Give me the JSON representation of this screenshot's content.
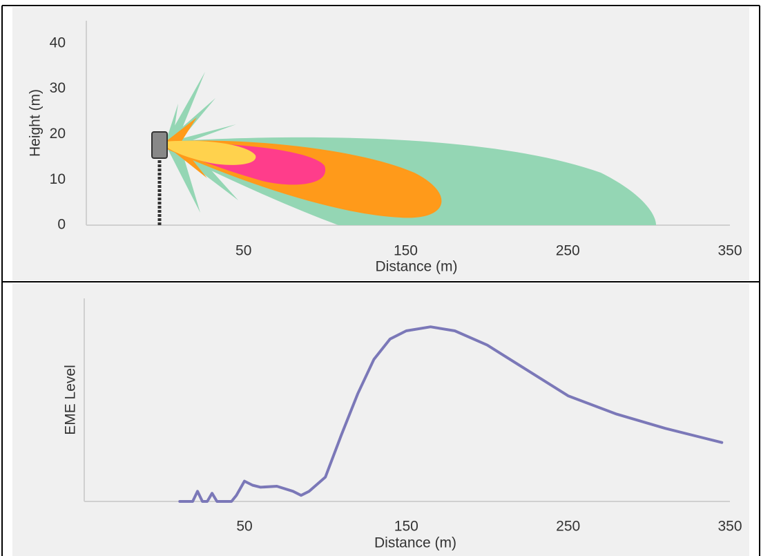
{
  "chart_data": [
    {
      "type": "area",
      "xlabel": "Distance (m)",
      "ylabel": "Height (m)",
      "xlim": [
        -47,
        350
      ],
      "ylim": [
        0,
        45
      ],
      "xticks": [
        50,
        150,
        250,
        350
      ],
      "yticks": [
        0,
        10,
        20,
        30,
        40
      ]
    },
    {
      "type": "line",
      "xlabel": "Distance (m)",
      "ylabel": "EME Level",
      "xlim": [
        -49,
        350
      ],
      "ylim": [
        0,
        100
      ],
      "xticks": [
        50,
        150,
        250,
        350
      ],
      "x": [
        10,
        18,
        21,
        24,
        27,
        30,
        33,
        42,
        45,
        50,
        55,
        60,
        70,
        80,
        85,
        90,
        100,
        110,
        120,
        130,
        140,
        150,
        165,
        180,
        200,
        220,
        250,
        280,
        310,
        345
      ],
      "series": [
        {
          "color": "#7b78b8",
          "values": [
            0,
            0,
            5,
            0,
            0,
            4,
            0,
            0,
            3,
            10,
            8,
            7,
            7.5,
            5,
            3,
            5,
            12,
            33,
            53,
            70,
            80,
            84,
            86,
            84,
            77,
            67,
            52,
            43,
            36,
            29
          ]
        }
      ]
    }
  ]
}
